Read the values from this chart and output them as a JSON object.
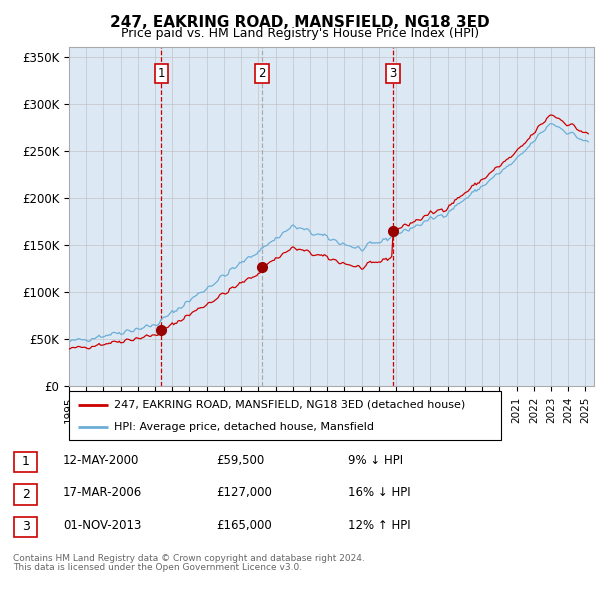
{
  "title": "247, EAKRING ROAD, MANSFIELD, NG18 3ED",
  "subtitle": "Price paid vs. HM Land Registry's House Price Index (HPI)",
  "legend_line1": "247, EAKRING ROAD, MANSFIELD, NG18 3ED (detached house)",
  "legend_line2": "HPI: Average price, detached house, Mansfield",
  "footnote1": "Contains HM Land Registry data © Crown copyright and database right 2024.",
  "footnote2": "This data is licensed under the Open Government Licence v3.0.",
  "transactions": [
    {
      "num": 1,
      "date": "12-MAY-2000",
      "price": "£59,500",
      "change": "9% ↓ HPI",
      "year": 2000.37
    },
    {
      "num": 2,
      "date": "17-MAR-2006",
      "price": "£127,000",
      "change": "16% ↓ HPI",
      "year": 2006.21
    },
    {
      "num": 3,
      "date": "01-NOV-2013",
      "price": "£165,000",
      "change": "12% ↑ HPI",
      "year": 2013.83
    }
  ],
  "sale_prices": [
    59500,
    127000,
    165000
  ],
  "sale_years": [
    2000.37,
    2006.21,
    2013.83
  ],
  "hpi_color": "#6baed6",
  "price_color": "#cc0000",
  "vline_color_red": "#cc0000",
  "vline_color_gray": "#aaaaaa",
  "plot_bg": "#dce9f5",
  "ylim": [
    0,
    360000
  ],
  "yticks": [
    0,
    50000,
    100000,
    150000,
    200000,
    250000,
    300000,
    350000
  ],
  "ytick_labels": [
    "£0",
    "£50K",
    "£100K",
    "£150K",
    "£200K",
    "£250K",
    "£300K",
    "£350K"
  ],
  "xmin": 1995,
  "xmax": 2025.5
}
